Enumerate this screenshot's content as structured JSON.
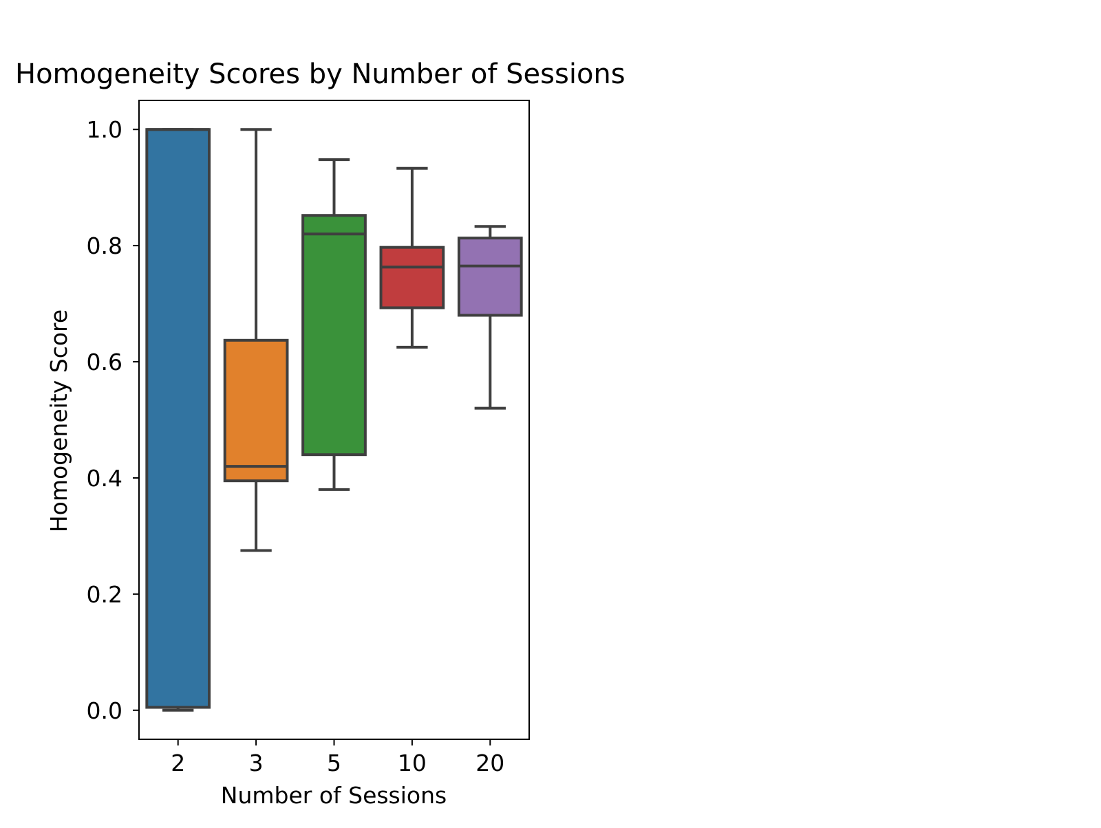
{
  "chart_data": {
    "type": "box",
    "title": "Homogeneity Scores by Number of Sessions",
    "xlabel": "Number of Sessions",
    "ylabel": "Homogeneity Score",
    "categories": [
      "2",
      "3",
      "5",
      "10",
      "20"
    ],
    "ylim": [
      -0.05,
      1.05
    ],
    "yticks": [
      "0.0",
      "0.2",
      "0.4",
      "0.6",
      "0.8",
      "1.0"
    ],
    "grid": false,
    "boxes": [
      {
        "category": "2",
        "whisker_low": 0.0,
        "q1": 0.005,
        "median": 1.0,
        "q3": 1.0,
        "whisker_high": 1.0,
        "color": "#3274a1"
      },
      {
        "category": "3",
        "whisker_low": 0.275,
        "q1": 0.395,
        "median": 0.42,
        "q3": 0.637,
        "whisker_high": 1.0,
        "color": "#e1812c"
      },
      {
        "category": "5",
        "whisker_low": 0.38,
        "q1": 0.44,
        "median": 0.82,
        "q3": 0.852,
        "whisker_high": 0.948,
        "color": "#3a923a"
      },
      {
        "category": "10",
        "whisker_low": 0.625,
        "q1": 0.693,
        "median": 0.763,
        "q3": 0.797,
        "whisker_high": 0.933,
        "color": "#c03d3e"
      },
      {
        "category": "20",
        "whisker_low": 0.52,
        "q1": 0.68,
        "median": 0.765,
        "q3": 0.813,
        "whisker_high": 0.833,
        "color": "#9372b2"
      }
    ]
  }
}
